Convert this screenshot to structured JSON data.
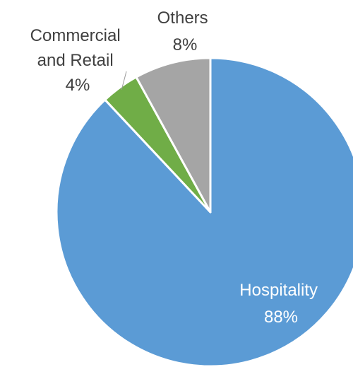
{
  "chart_data": {
    "type": "pie",
    "title": "",
    "slices": [
      {
        "name": "Hospitality",
        "value": 88,
        "percent_label": "88%",
        "color": "#5b9bd5"
      },
      {
        "name": "Commercial and Retail",
        "name_lines": [
          "Commercial",
          "and Retail"
        ],
        "value": 4,
        "percent_label": "4%",
        "color": "#70ad47"
      },
      {
        "name": "Others",
        "value": 8,
        "percent_label": "8%",
        "color": "#a5a5a5"
      }
    ],
    "start_angle": "12 o'clock",
    "direction": "clockwise",
    "legend": "none",
    "data_labels": "category name and percentage"
  }
}
